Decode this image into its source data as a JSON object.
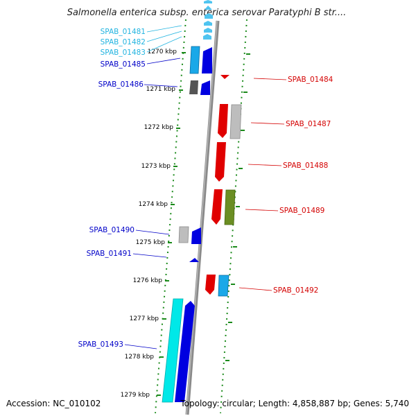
{
  "title": "Salmonella enterica subsp. enterica serovar Paratyphi B str....",
  "accession": "Accession: NC_010102",
  "topology": "Topology: circular; Length: 4,858,887 bp; Genes: 5,740",
  "colors": {
    "backbone": "#8a8a8a",
    "tick": "#1a8a1a",
    "label_left_light": "#22b4e0",
    "label_left_dark": "#0000c8",
    "label_right": "#d40000"
  },
  "kbp_labels": [
    "1270 kbp",
    "1271 kbp",
    "1272 kbp",
    "1273 kbp",
    "1274 kbp",
    "1275 kbp",
    "1276 kbp",
    "1277 kbp",
    "1278 kbp",
    "1279 kbp"
  ],
  "genes_left": [
    {
      "name": "SPAB_01481",
      "shade": "light"
    },
    {
      "name": "SPAB_01482",
      "shade": "light"
    },
    {
      "name": "SPAB_01483",
      "shade": "light"
    },
    {
      "name": "SPAB_01485",
      "shade": "dark"
    },
    {
      "name": "SPAB_01486",
      "shade": "dark"
    },
    {
      "name": "SPAB_01490",
      "shade": "dark"
    },
    {
      "name": "SPAB_01491",
      "shade": "dark"
    },
    {
      "name": "SPAB_01493",
      "shade": "dark"
    }
  ],
  "genes_right": [
    {
      "name": "SPAB_01484"
    },
    {
      "name": "SPAB_01487"
    },
    {
      "name": "SPAB_01488"
    },
    {
      "name": "SPAB_01489"
    },
    {
      "name": "SPAB_01492"
    }
  ]
}
